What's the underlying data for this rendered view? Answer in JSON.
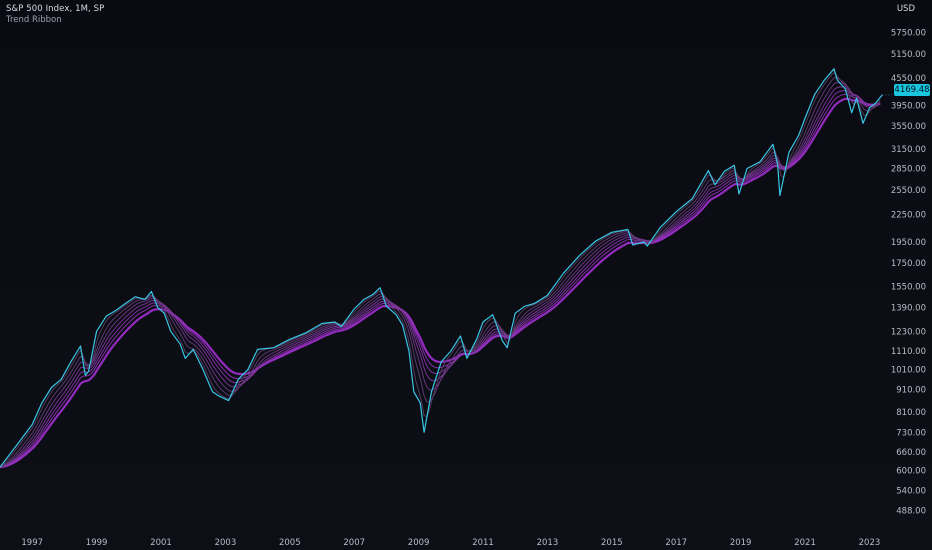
{
  "header": {
    "title": "S&P 500 Index, 1M, SP",
    "indicator": "Trend Ribbon",
    "currency": "USD"
  },
  "colors": {
    "price": "#38c8e6",
    "ribbon_inner": "#5a3e66",
    "ribbon_outer": "#a12fd0",
    "axis_text": "#b7bcc6",
    "badge_bg": "#18c6e0"
  },
  "chart_data": {
    "type": "line",
    "title": "S&P 500 Index, 1M, SP",
    "y_scale": "log",
    "ylim": [
      450,
      6200
    ],
    "xlim": [
      1996.0,
      2023.7
    ],
    "yticks": [
      5750,
      5150,
      4550,
      3950,
      3550,
      3150,
      2850,
      2550,
      2250,
      1950,
      1750,
      1550,
      1390,
      1230,
      1110,
      1010,
      910,
      810,
      730,
      660,
      600,
      540,
      488
    ],
    "ytick_labels": [
      "5750.00",
      "5150.00",
      "4550.00",
      "3950.00",
      "3550.00",
      "3150.00",
      "2850.00",
      "2550.00",
      "2250.00",
      "1950.00",
      "1750.00",
      "1550.00",
      "1390.00",
      "1230.00",
      "1110.00",
      "1010.00",
      "910.00",
      "810.00",
      "730.00",
      "660.00",
      "600.00",
      "540.00",
      "488.00"
    ],
    "xticks": [
      1997,
      1999,
      2001,
      2003,
      2005,
      2007,
      2009,
      2011,
      2013,
      2015,
      2017,
      2019,
      2021,
      2023
    ],
    "xtick_labels": [
      "1997",
      "1999",
      "2001",
      "2003",
      "2005",
      "2007",
      "2009",
      "2011",
      "2013",
      "2015",
      "2017",
      "2019",
      "2021",
      "2023"
    ],
    "last_price": "4169.48",
    "series": [
      {
        "role": "price",
        "x": [
          1996.0,
          1996.5,
          1997.0,
          1997.3,
          1997.6,
          1997.9,
          1998.2,
          1998.5,
          1998.65,
          1998.75,
          1999.0,
          1999.3,
          1999.6,
          1999.9,
          2000.2,
          2000.5,
          2000.7,
          2000.9,
          2001.1,
          2001.3,
          2001.6,
          2001.75,
          2002.0,
          2002.3,
          2002.6,
          2002.8,
          2003.1,
          2003.4,
          2003.7,
          2004.0,
          2004.5,
          2005.0,
          2005.5,
          2006.0,
          2006.4,
          2006.6,
          2007.0,
          2007.3,
          2007.6,
          2007.8,
          2008.0,
          2008.3,
          2008.5,
          2008.7,
          2008.85,
          2009.05,
          2009.17,
          2009.4,
          2009.7,
          2010.0,
          2010.3,
          2010.5,
          2010.8,
          2011.0,
          2011.3,
          2011.6,
          2011.75,
          2012.0,
          2012.3,
          2012.6,
          2013.0,
          2013.5,
          2014.0,
          2014.5,
          2015.0,
          2015.5,
          2015.65,
          2016.0,
          2016.1,
          2016.5,
          2017.0,
          2017.5,
          2018.0,
          2018.2,
          2018.5,
          2018.8,
          2018.95,
          2019.2,
          2019.6,
          2020.0,
          2020.15,
          2020.22,
          2020.5,
          2020.8,
          2021.0,
          2021.3,
          2021.6,
          2021.9,
          2022.0,
          2022.25,
          2022.45,
          2022.6,
          2022.8,
          2023.0,
          2023.2,
          2023.4
        ],
        "values": [
          610,
          680,
          760,
          850,
          920,
          960,
          1050,
          1140,
          980,
          1000,
          1230,
          1330,
          1370,
          1420,
          1470,
          1450,
          1510,
          1390,
          1350,
          1230,
          1150,
          1070,
          1120,
          1010,
          900,
          880,
          860,
          960,
          1010,
          1120,
          1130,
          1180,
          1220,
          1280,
          1290,
          1260,
          1380,
          1450,
          1490,
          1540,
          1400,
          1340,
          1270,
          1110,
          900,
          850,
          730,
          900,
          1050,
          1110,
          1200,
          1070,
          1180,
          1290,
          1340,
          1170,
          1130,
          1350,
          1400,
          1420,
          1480,
          1660,
          1820,
          1960,
          2050,
          2080,
          1920,
          1950,
          1910,
          2100,
          2280,
          2440,
          2820,
          2620,
          2810,
          2900,
          2500,
          2850,
          2950,
          3230,
          2900,
          2480,
          3100,
          3380,
          3700,
          4180,
          4500,
          4770,
          4500,
          4300,
          3800,
          4100,
          3600,
          3900,
          4000,
          4169
        ]
      },
      {
        "role": "ribbon",
        "note": "stack of moving averages; fast (inner) to slow (outer)",
        "lengths": [
          3,
          6,
          9,
          12,
          15,
          18,
          22
        ]
      }
    ]
  }
}
